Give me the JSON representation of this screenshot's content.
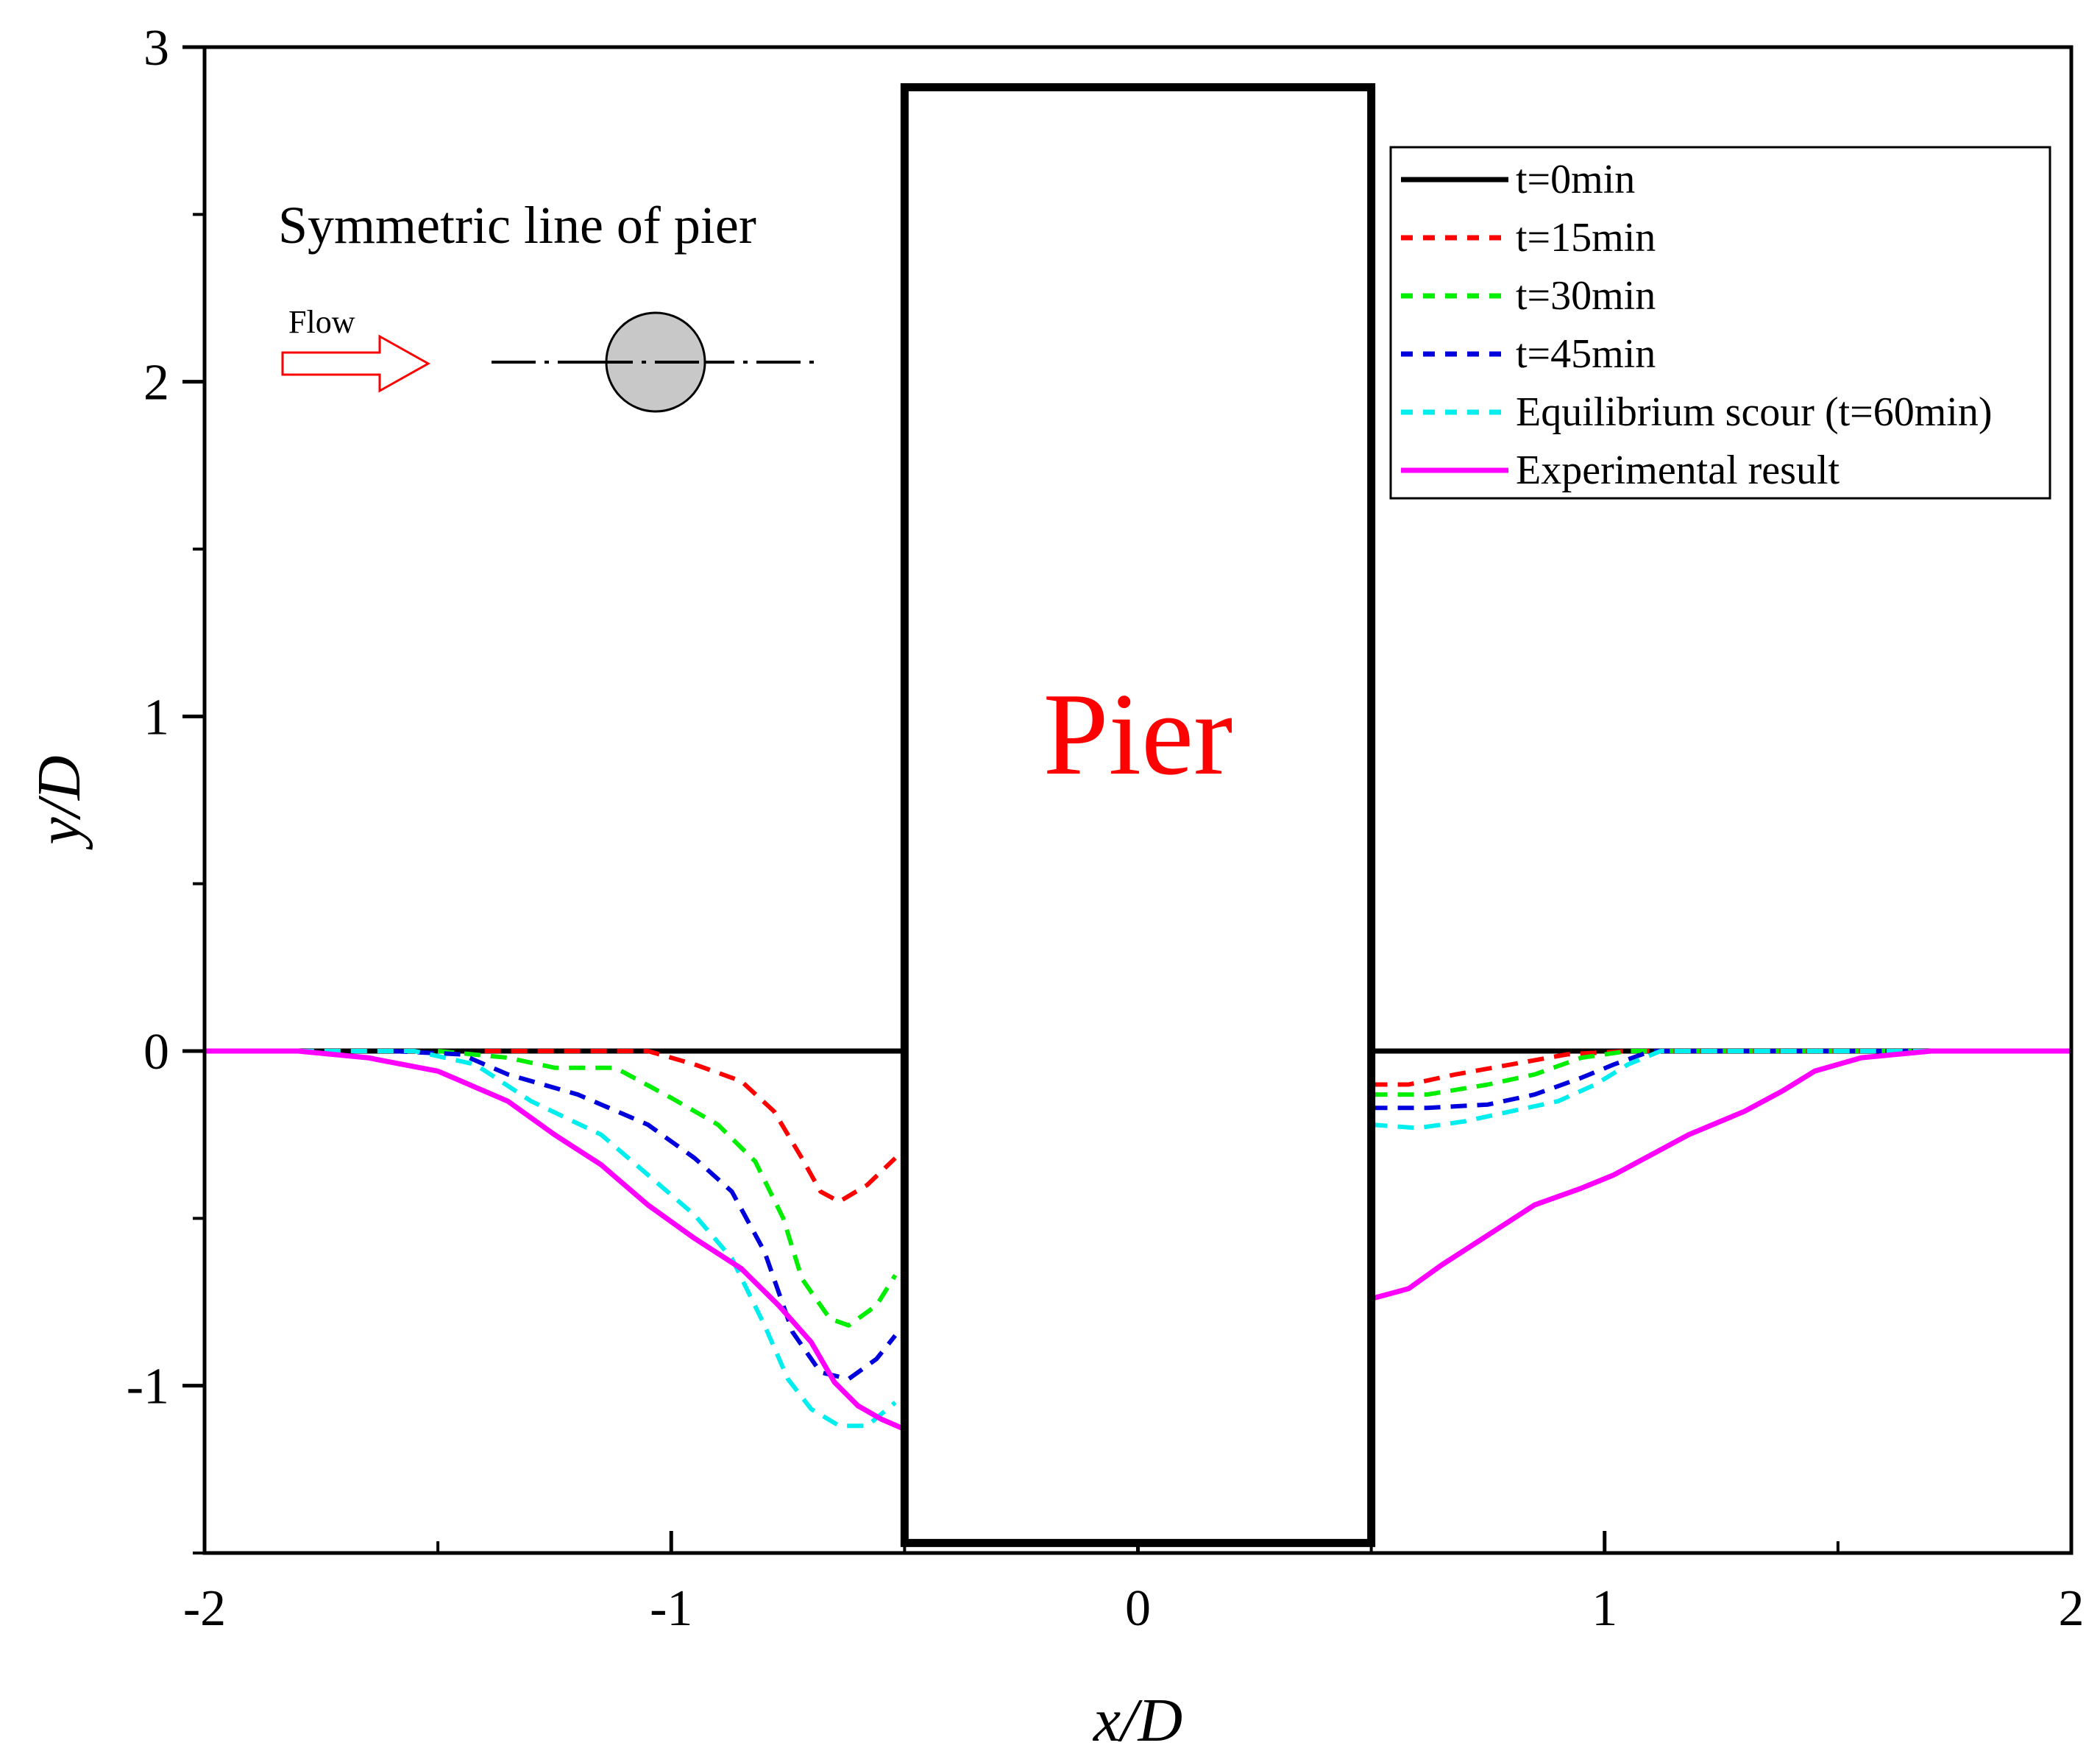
{
  "chart_data": {
    "type": "line",
    "title": "",
    "xlabel": "x/D",
    "ylabel": "y/D",
    "xlim": [
      -2,
      2
    ],
    "ylim": [
      -1.5,
      3
    ],
    "xticks": [
      -2,
      -1,
      0,
      1,
      2
    ],
    "yticks": [
      -1,
      0,
      1,
      2,
      3
    ],
    "xtick_labels": [
      "-2",
      "-1",
      "0",
      "1",
      "2"
    ],
    "ytick_labels": [
      "-1",
      "0",
      "1",
      "2",
      "3"
    ],
    "grid": false,
    "legend_position": "top-right",
    "pier": {
      "label": "Pier",
      "x_range": [
        -0.5,
        0.5
      ],
      "y_range": [
        -1.47,
        2.88
      ],
      "label_color": "#ff0000"
    },
    "annotation": {
      "title": "Symmetric line of pier",
      "flow_label": "Flow"
    },
    "series": [
      {
        "name": "t=0min",
        "color": "#000000",
        "dash": "solid",
        "segments": [
          [
            [
              -2.0,
              0.0
            ],
            [
              -0.5,
              0.0
            ]
          ],
          [
            [
              0.5,
              0.0
            ],
            [
              2.0,
              0.0
            ]
          ]
        ]
      },
      {
        "name": "t=15min",
        "color": "#ff0000",
        "dash": "dashed",
        "segments": [
          [
            [
              -1.4,
              0.0
            ],
            [
              -1.2,
              0.0
            ],
            [
              -1.05,
              0.0
            ],
            [
              -0.95,
              -0.04
            ],
            [
              -0.85,
              -0.09
            ],
            [
              -0.78,
              -0.18
            ],
            [
              -0.72,
              -0.32
            ],
            [
              -0.68,
              -0.42
            ],
            [
              -0.64,
              -0.45
            ],
            [
              -0.58,
              -0.4
            ],
            [
              -0.52,
              -0.32
            ]
          ],
          [
            [
              0.5,
              -0.1
            ],
            [
              0.58,
              -0.1
            ],
            [
              0.68,
              -0.07
            ],
            [
              0.8,
              -0.04
            ],
            [
              0.92,
              -0.01
            ],
            [
              1.05,
              0.0
            ],
            [
              1.3,
              0.0
            ],
            [
              1.6,
              0.0
            ]
          ]
        ]
      },
      {
        "name": "t=30min",
        "color": "#00ee00",
        "dash": "dashed",
        "segments": [
          [
            [
              -1.5,
              0.0
            ],
            [
              -1.35,
              -0.02
            ],
            [
              -1.25,
              -0.05
            ],
            [
              -1.12,
              -0.05
            ],
            [
              -1.0,
              -0.14
            ],
            [
              -0.9,
              -0.22
            ],
            [
              -0.82,
              -0.33
            ],
            [
              -0.76,
              -0.5
            ],
            [
              -0.72,
              -0.68
            ],
            [
              -0.66,
              -0.8
            ],
            [
              -0.62,
              -0.82
            ],
            [
              -0.56,
              -0.76
            ],
            [
              -0.52,
              -0.67
            ]
          ],
          [
            [
              0.5,
              -0.13
            ],
            [
              0.62,
              -0.13
            ],
            [
              0.75,
              -0.1
            ],
            [
              0.85,
              -0.07
            ],
            [
              0.95,
              -0.02
            ],
            [
              1.05,
              0.0
            ],
            [
              1.3,
              0.0
            ],
            [
              1.7,
              0.0
            ]
          ]
        ]
      },
      {
        "name": "t=45min",
        "color": "#0000dd",
        "dash": "dashed",
        "segments": [
          [
            [
              -1.6,
              0.0
            ],
            [
              -1.45,
              -0.01
            ],
            [
              -1.35,
              -0.07
            ],
            [
              -1.2,
              -0.13
            ],
            [
              -1.05,
              -0.22
            ],
            [
              -0.95,
              -0.32
            ],
            [
              -0.87,
              -0.42
            ],
            [
              -0.8,
              -0.6
            ],
            [
              -0.74,
              -0.84
            ],
            [
              -0.68,
              -0.96
            ],
            [
              -0.62,
              -0.98
            ],
            [
              -0.56,
              -0.92
            ],
            [
              -0.52,
              -0.85
            ]
          ],
          [
            [
              0.5,
              -0.17
            ],
            [
              0.62,
              -0.17
            ],
            [
              0.75,
              -0.16
            ],
            [
              0.85,
              -0.13
            ],
            [
              0.95,
              -0.08
            ],
            [
              1.02,
              -0.04
            ],
            [
              1.1,
              0.0
            ],
            [
              1.4,
              0.0
            ],
            [
              1.8,
              0.0
            ]
          ]
        ]
      },
      {
        "name": "Equilibrium scour (t=60min)",
        "color": "#00eeee",
        "dash": "dashed",
        "segments": [
          [
            [
              -1.8,
              0.0
            ],
            [
              -1.55,
              0.0
            ],
            [
              -1.42,
              -0.04
            ],
            [
              -1.3,
              -0.15
            ],
            [
              -1.15,
              -0.25
            ],
            [
              -1.05,
              -0.37
            ],
            [
              -0.95,
              -0.49
            ],
            [
              -0.87,
              -0.62
            ],
            [
              -0.8,
              -0.82
            ],
            [
              -0.75,
              -0.98
            ],
            [
              -0.7,
              -1.07
            ],
            [
              -0.64,
              -1.12
            ],
            [
              -0.58,
              -1.12
            ],
            [
              -0.52,
              -1.05
            ]
          ],
          [
            [
              0.5,
              -0.22
            ],
            [
              0.6,
              -0.23
            ],
            [
              0.7,
              -0.21
            ],
            [
              0.8,
              -0.18
            ],
            [
              0.9,
              -0.15
            ],
            [
              0.98,
              -0.1
            ],
            [
              1.05,
              -0.04
            ],
            [
              1.12,
              0.0
            ],
            [
              1.4,
              0.0
            ],
            [
              1.8,
              0.0
            ]
          ]
        ]
      },
      {
        "name": "Experimental result",
        "color": "#ff00ff",
        "dash": "solid",
        "segments": [
          [
            [
              -2.0,
              0.0
            ],
            [
              -1.8,
              0.0
            ],
            [
              -1.65,
              -0.02
            ],
            [
              -1.5,
              -0.06
            ],
            [
              -1.35,
              -0.15
            ],
            [
              -1.25,
              -0.25
            ],
            [
              -1.15,
              -0.34
            ],
            [
              -1.05,
              -0.46
            ],
            [
              -0.95,
              -0.56
            ],
            [
              -0.85,
              -0.65
            ],
            [
              -0.77,
              -0.76
            ],
            [
              -0.7,
              -0.87
            ],
            [
              -0.65,
              -0.99
            ],
            [
              -0.6,
              -1.06
            ],
            [
              -0.55,
              -1.1
            ],
            [
              -0.5,
              -1.13
            ]
          ],
          [
            [
              0.5,
              -0.74
            ],
            [
              0.58,
              -0.71
            ],
            [
              0.65,
              -0.64
            ],
            [
              0.75,
              -0.55
            ],
            [
              0.85,
              -0.46
            ],
            [
              0.95,
              -0.41
            ],
            [
              1.02,
              -0.37
            ],
            [
              1.1,
              -0.31
            ],
            [
              1.18,
              -0.25
            ],
            [
              1.3,
              -0.18
            ],
            [
              1.38,
              -0.12
            ],
            [
              1.45,
              -0.06
            ],
            [
              1.55,
              -0.02
            ],
            [
              1.7,
              0.0
            ],
            [
              2.0,
              0.0
            ]
          ]
        ]
      }
    ]
  }
}
